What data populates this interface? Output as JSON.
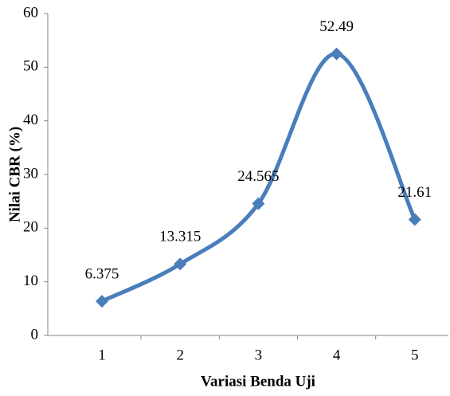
{
  "chart_data": {
    "type": "line",
    "x_label": "Variasi Benda Uji",
    "y_label": "Nilai  CBR (%)",
    "categories": [
      "1",
      "2",
      "3",
      "4",
      "5"
    ],
    "series": [
      {
        "name": "CBR",
        "color": "#4a7ebb",
        "values": [
          6.375,
          13.315,
          24.565,
          52.49,
          21.61
        ]
      }
    ],
    "ylim": [
      0,
      60
    ],
    "yticks": [
      0,
      10,
      20,
      30,
      40,
      50,
      60
    ],
    "grid": false,
    "smooth": true,
    "marker": "diamond",
    "data_labels": true
  }
}
